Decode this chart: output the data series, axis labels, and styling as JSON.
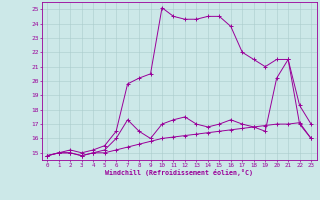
{
  "xlabel": "Windchill (Refroidissement éolien,°C)",
  "bg_color": "#cce8e8",
  "grid_color": "#aacccc",
  "line_color": "#990099",
  "xlim": [
    -0.5,
    23.5
  ],
  "ylim": [
    14.5,
    25.5
  ],
  "xticks": [
    0,
    1,
    2,
    3,
    4,
    5,
    6,
    7,
    8,
    9,
    10,
    11,
    12,
    13,
    14,
    15,
    16,
    17,
    18,
    19,
    20,
    21,
    22,
    23
  ],
  "yticks": [
    15,
    16,
    17,
    18,
    19,
    20,
    21,
    22,
    23,
    24,
    25
  ],
  "lines": [
    {
      "x": [
        0,
        1,
        2,
        3,
        4,
        5,
        6,
        7,
        8,
        9,
        10,
        11,
        12,
        13,
        14,
        15,
        16,
        17,
        18,
        19,
        20,
        21,
        22,
        23
      ],
      "y": [
        14.8,
        15.0,
        15.0,
        14.8,
        15.0,
        15.0,
        15.2,
        15.4,
        15.6,
        15.8,
        16.0,
        16.1,
        16.2,
        16.3,
        16.4,
        16.5,
        16.6,
        16.7,
        16.8,
        16.9,
        17.0,
        17.0,
        17.1,
        16.0
      ]
    },
    {
      "x": [
        0,
        1,
        2,
        3,
        4,
        5,
        6,
        7,
        8,
        9,
        10,
        11,
        12,
        13,
        14,
        15,
        16,
        17,
        18,
        19,
        20,
        21,
        22,
        23
      ],
      "y": [
        14.8,
        15.0,
        15.0,
        14.8,
        15.0,
        15.2,
        16.0,
        17.3,
        16.5,
        16.0,
        17.0,
        17.3,
        17.5,
        17.0,
        16.8,
        17.0,
        17.3,
        17.0,
        16.8,
        16.5,
        20.2,
        21.5,
        18.3,
        17.0
      ]
    },
    {
      "x": [
        0,
        1,
        2,
        3,
        4,
        5,
        6,
        7,
        8,
        9,
        10,
        11,
        12,
        13,
        14,
        15,
        16,
        17,
        18,
        19,
        20,
        21,
        22,
        23
      ],
      "y": [
        14.8,
        15.0,
        15.2,
        15.0,
        15.2,
        15.5,
        16.5,
        19.8,
        20.2,
        20.5,
        25.1,
        24.5,
        24.3,
        24.3,
        24.5,
        24.5,
        23.8,
        22.0,
        21.5,
        21.0,
        21.5,
        21.5,
        17.0,
        16.0
      ]
    }
  ]
}
